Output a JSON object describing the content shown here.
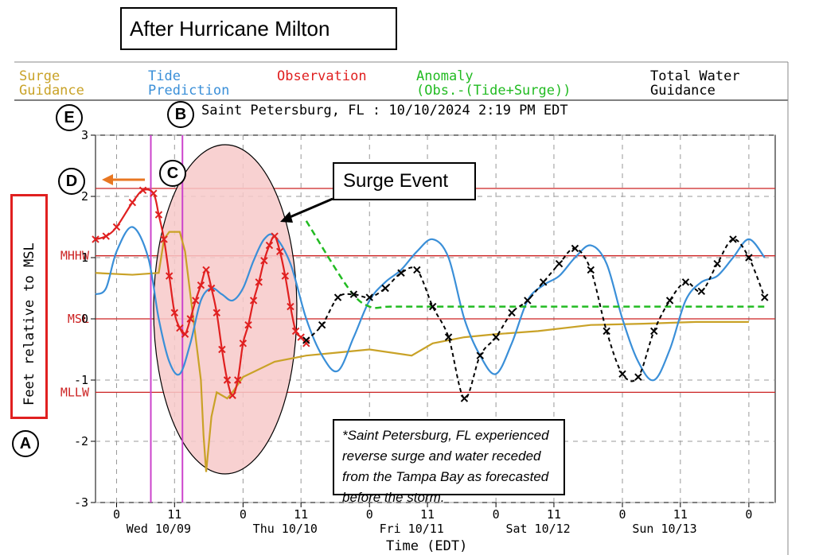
{
  "header": {
    "title": "After Hurricane Milton"
  },
  "legend": {
    "surge": [
      "Surge",
      "Guidance"
    ],
    "tide": [
      "Tide",
      "Prediction"
    ],
    "observation": "Observation",
    "anomaly": [
      "Anomaly",
      "(Obs.-(Tide+Surge))"
    ],
    "total": [
      "Total Water",
      "Guidance"
    ]
  },
  "station_line": "Saint Petersburg, FL : 10/10/2024 2:19 PM EDT",
  "annotations": {
    "surge_event": "Surge Event",
    "note": "*Saint Petersburg, FL experienced reverse surge and water receded from the Tampa Bay as forecasted before the storm.",
    "markers": {
      "a": "A",
      "b": "B",
      "c": "C",
      "d": "D",
      "e": "E"
    }
  },
  "colors": {
    "surge": "#c9a227",
    "tide": "#3a8fd8",
    "observation": "#e02020",
    "anomaly": "#22bb22",
    "total": "#000000",
    "datum": "#cc2222",
    "event_lines": "#cc44cc",
    "ellipse_fill": "#f7c9c9",
    "arrow_orange": "#e87722"
  },
  "chart_data": {
    "type": "line",
    "title": "Saint Petersburg, FL : 10/10/2024 2:19 PM EDT",
    "xlabel": "Time (EDT)",
    "ylabel": "Feet relative to MSL",
    "ylim": [
      -3,
      3
    ],
    "xlim": [
      "10/08 20:00",
      "10/14 01:00"
    ],
    "yticks": [
      -3,
      -2,
      -1,
      0,
      1,
      2,
      3
    ],
    "xtick_labels": [
      "0",
      "11",
      "0",
      "11",
      "0",
      "11",
      "0",
      "11",
      "0",
      "11",
      "0"
    ],
    "x_hours": [
      0,
      11,
      24,
      35,
      48,
      59,
      72,
      83,
      96,
      107,
      120
    ],
    "date_labels": [
      "Wed 10/09",
      "Thu 10/10",
      "Fri 10/11",
      "Sat 10/12",
      "Sun 10/13"
    ],
    "x_units": "hours after 10/09 00:00 EDT",
    "datums": [
      {
        "name": "MHHW",
        "value": 1.03
      },
      {
        "name": "MSL",
        "value": 0.0
      },
      {
        "name": "MLLW",
        "value": -1.2
      },
      {
        "name": "",
        "value": 2.13
      }
    ],
    "event_lines_x": [
      6.5,
      12.5
    ],
    "grid": true,
    "series": [
      {
        "name": "Surge Guidance",
        "x": [
          -4,
          3,
          8,
          9,
          10,
          12,
          13,
          14,
          15,
          16,
          16.5,
          17,
          18,
          19,
          20,
          21,
          22,
          24,
          30,
          36,
          42,
          48,
          56,
          60,
          66,
          72,
          80,
          90,
          100,
          110,
          116,
          120
        ],
        "y": [
          0.75,
          0.72,
          0.75,
          1.3,
          1.42,
          1.42,
          1.1,
          0.4,
          -0.3,
          -1.0,
          -1.9,
          -2.5,
          -1.6,
          -1.2,
          -1.25,
          -1.3,
          -1.2,
          -0.95,
          -0.7,
          -0.6,
          -0.55,
          -0.5,
          -0.6,
          -0.4,
          -0.3,
          -0.25,
          -0.2,
          -0.1,
          -0.08,
          -0.05,
          -0.05,
          -0.05
        ]
      },
      {
        "name": "Tide Prediction",
        "x": [
          -4,
          -2,
          0,
          3,
          6,
          8,
          10,
          12,
          14,
          16,
          18,
          20,
          22,
          24,
          26,
          28,
          30,
          33,
          36,
          39,
          42,
          45,
          48,
          51,
          54,
          57,
          60,
          63,
          66,
          69,
          72,
          75,
          78,
          81,
          84,
          87,
          90,
          93,
          96,
          99,
          102,
          105,
          108,
          111,
          114,
          117,
          120,
          123
        ],
        "y": [
          0.4,
          0.5,
          1.1,
          1.5,
          1.0,
          0.0,
          -0.7,
          -0.9,
          -0.4,
          0.3,
          0.5,
          0.4,
          0.3,
          0.5,
          0.95,
          1.3,
          1.35,
          0.9,
          0.0,
          -0.6,
          -0.85,
          -0.3,
          0.3,
          0.6,
          0.8,
          1.1,
          1.3,
          1.0,
          0.0,
          -0.6,
          -0.9,
          -0.4,
          0.3,
          0.55,
          0.7,
          1.0,
          1.2,
          0.9,
          0.0,
          -0.7,
          -1.0,
          -0.5,
          0.3,
          0.6,
          0.7,
          1.0,
          1.3,
          1.0
        ]
      },
      {
        "name": "Observation",
        "x": [
          -4,
          -2,
          0,
          3,
          5,
          7,
          8,
          9,
          10,
          11,
          12,
          13,
          14,
          15,
          16,
          17,
          18,
          19,
          20,
          21,
          22,
          23,
          24,
          25,
          26,
          27,
          28,
          29,
          30,
          31,
          32,
          33,
          34,
          35,
          36
        ],
        "y": [
          1.3,
          1.35,
          1.5,
          1.9,
          2.1,
          2.05,
          1.7,
          1.3,
          0.7,
          0.1,
          -0.15,
          -0.25,
          0.0,
          0.3,
          0.55,
          0.8,
          0.5,
          0.1,
          -0.5,
          -1.0,
          -1.25,
          -1.0,
          -0.4,
          -0.1,
          0.3,
          0.6,
          0.95,
          1.2,
          1.35,
          1.1,
          0.7,
          0.2,
          -0.2,
          -0.3,
          -0.4
        ]
      },
      {
        "name": "Anomaly",
        "x": [
          36,
          44,
          48,
          52,
          60,
          70,
          80,
          90,
          100,
          110,
          120,
          123
        ],
        "y": [
          1.6,
          0.5,
          0.2,
          0.2,
          0.2,
          0.2,
          0.2,
          0.2,
          0.2,
          0.2,
          0.2,
          0.2
        ]
      },
      {
        "name": "Total Water Guidance",
        "x": [
          36,
          39,
          42,
          45,
          48,
          51,
          54,
          57,
          60,
          63,
          66,
          69,
          72,
          75,
          78,
          81,
          84,
          87,
          90,
          93,
          96,
          99,
          102,
          105,
          108,
          111,
          114,
          117,
          120,
          123
        ],
        "y": [
          -0.35,
          -0.1,
          0.35,
          0.4,
          0.35,
          0.5,
          0.75,
          0.8,
          0.2,
          -0.3,
          -1.3,
          -0.6,
          -0.3,
          0.1,
          0.3,
          0.6,
          0.9,
          1.15,
          0.8,
          -0.2,
          -0.9,
          -0.95,
          -0.2,
          0.3,
          0.6,
          0.45,
          0.9,
          1.3,
          1.0,
          0.35
        ]
      }
    ]
  }
}
